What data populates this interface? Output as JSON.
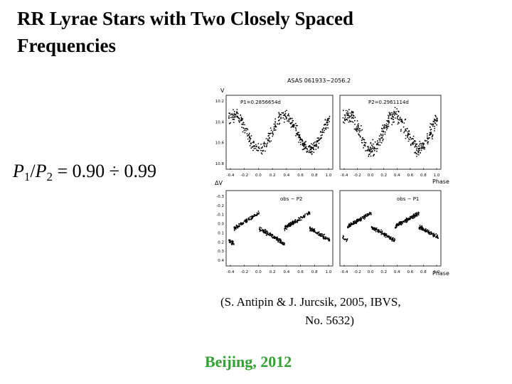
{
  "slide": {
    "title_line1": "RR Lyrae Stars with Two Closely Spaced",
    "title_line2": "Frequencies",
    "formula": {
      "var1": "P",
      "sub1": "1",
      "sep": "/",
      "var2": "P",
      "sub2": "2",
      "rhs": " = 0.90 ÷ 0.99"
    },
    "citation_line1": "(S. Antipin & J. Jurcsik, 2005, IBVS,",
    "citation_line2": "No. 5632)",
    "footer": "Beijing, 2012"
  },
  "figure": {
    "header": "ASAS 061933−2056.2",
    "top_y_label": "V",
    "bottom_y_label": "ΔV",
    "x_label": "Phase",
    "panels": {
      "tl": {
        "label": "P1=0.2856654d",
        "yticks": [
          "10.2",
          "10.4",
          "10.6",
          "10.8"
        ]
      },
      "tr": {
        "label": "P2=0.2961114d"
      },
      "bl": {
        "label": "obs − P2",
        "yticks": [
          "-0.3",
          "-0.2",
          "-0.1",
          "0.0",
          "0.1",
          "0.2",
          "0.3",
          "0.4"
        ]
      },
      "br": {
        "label": "obs − P1"
      }
    },
    "xticks": [
      "-0.4",
      "-0.2",
      "0.0",
      "0.2",
      "0.4",
      "0.6",
      "0.8",
      "1.0"
    ]
  },
  "colors": {
    "footer": "#33a033",
    "dots": "#000000"
  }
}
